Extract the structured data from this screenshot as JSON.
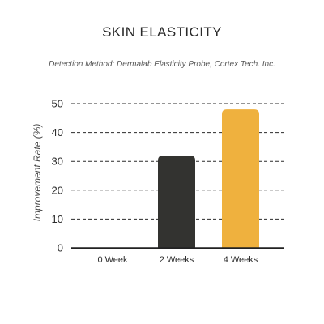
{
  "chart_data": {
    "type": "bar",
    "title": "SKIN ELASTICITY",
    "subtitle": "Detection Method: Dermalab Elasticity Probe, Cortex Tech. Inc.",
    "xlabel": "",
    "ylabel": "Improvement Rate (%)",
    "categories": [
      "0 Week",
      "2 Weeks",
      "4 Weeks"
    ],
    "values": [
      0,
      32,
      48
    ],
    "bar_colors": [
      "#333330",
      "#333330",
      "#efb13e"
    ],
    "ylim": [
      0,
      50
    ],
    "yticks": [
      0,
      10,
      20,
      30,
      40,
      50
    ],
    "grid": true,
    "grid_style": "dashed horizontal",
    "legend": "none"
  }
}
